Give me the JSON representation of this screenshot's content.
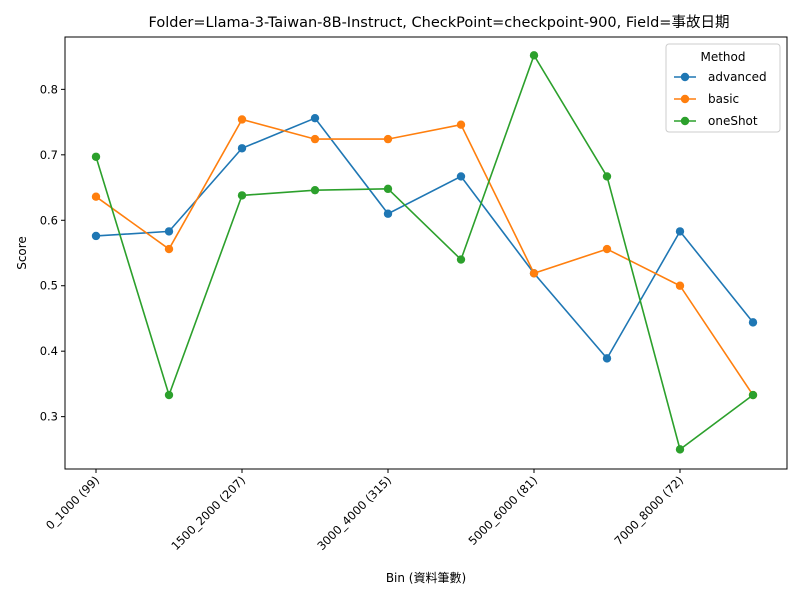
{
  "chart_data": {
    "type": "line",
    "title": "Folder=Llama-3-Taiwan-8B-Instruct, CheckPoint=checkpoint-900, Field=事故日期",
    "xlabel": "Bin (資料筆數)",
    "ylabel": "Score",
    "x_tick_labels": [
      "0_1000 (99)",
      "1500_2000 (207)",
      "3000_4000 (315)",
      "5000_6000 (81)",
      "7000_8000 (72)"
    ],
    "x_tick_positions": [
      0,
      2,
      4,
      6,
      8
    ],
    "x_count": 10,
    "ylim": [
      0.22,
      0.88
    ],
    "y_ticks": [
      "0.3",
      "0.4",
      "0.5",
      "0.6",
      "0.7",
      "0.8"
    ],
    "grid": false,
    "legend": {
      "title": "Method",
      "placement": "top-right"
    },
    "series": [
      {
        "name": "advanced",
        "color": "#1f77b4",
        "values": [
          0.576,
          0.583,
          0.71,
          0.756,
          0.61,
          0.667,
          0.519,
          0.389,
          0.583,
          0.444
        ]
      },
      {
        "name": "basic",
        "color": "#ff7f0e",
        "values": [
          0.636,
          0.556,
          0.754,
          0.724,
          0.724,
          0.746,
          0.519,
          0.556,
          0.5,
          0.333
        ]
      },
      {
        "name": "oneShot",
        "color": "#2ca02c",
        "values": [
          0.697,
          0.333,
          0.638,
          0.646,
          0.648,
          0.54,
          0.852,
          0.667,
          0.25,
          0.333
        ]
      }
    ]
  }
}
